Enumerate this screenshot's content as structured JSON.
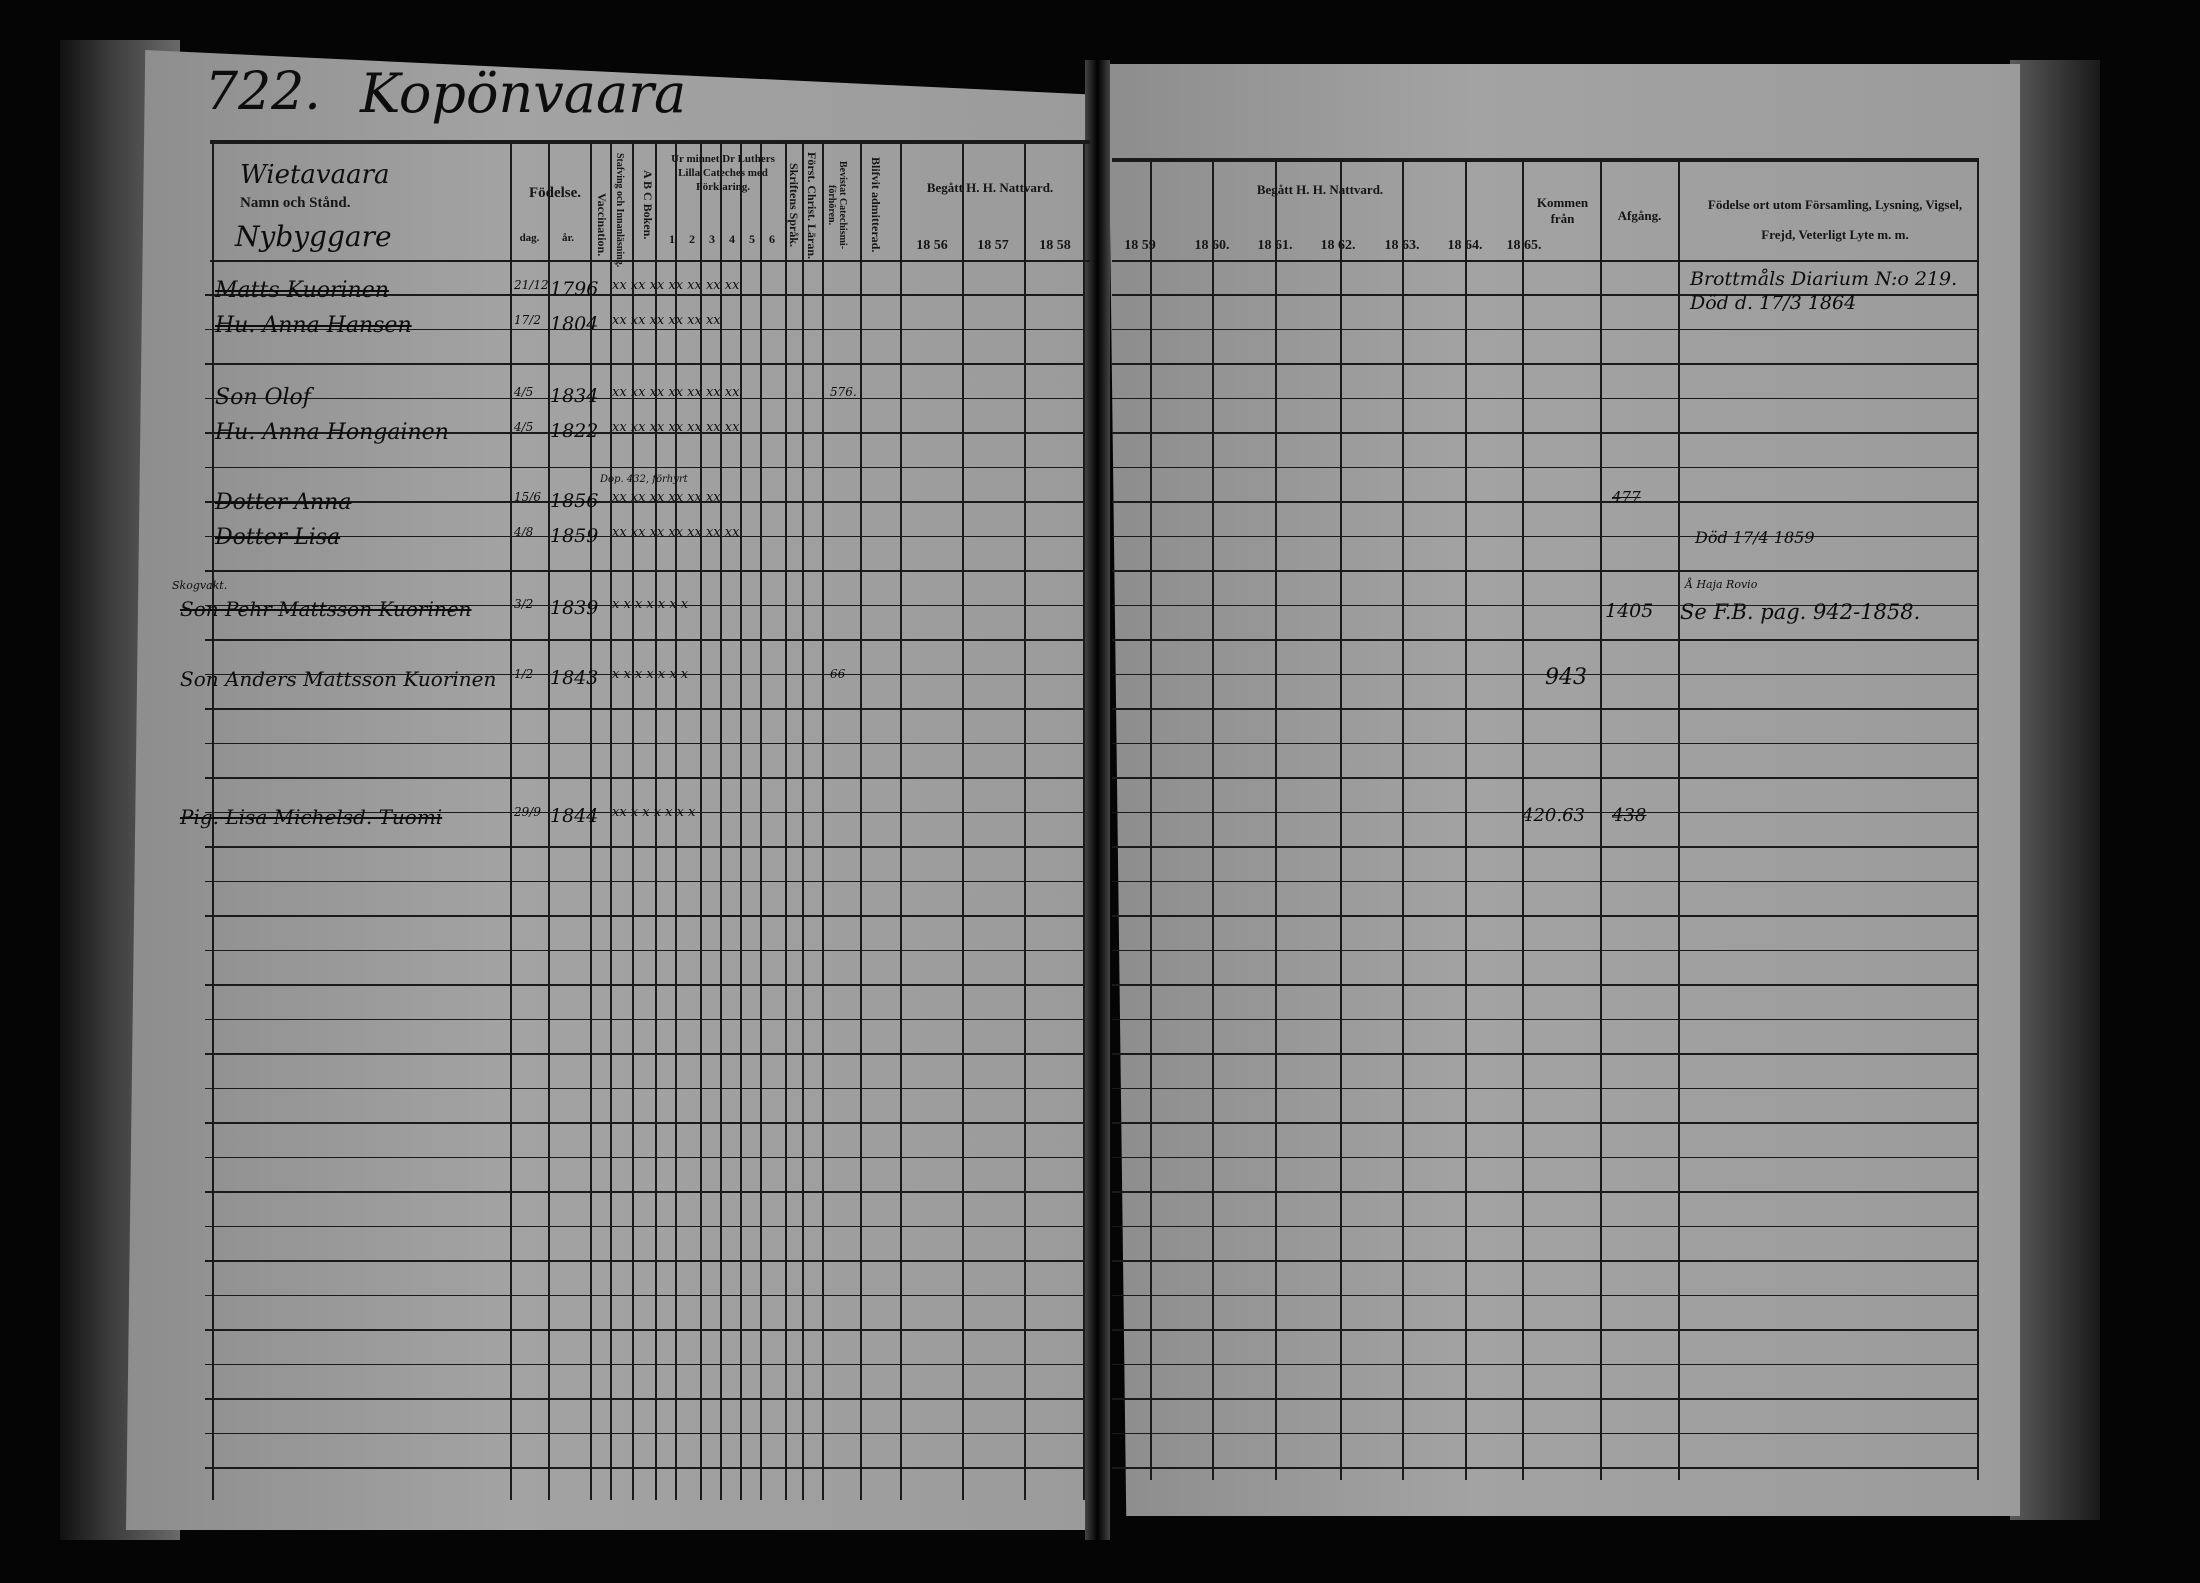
{
  "page_number": "722.",
  "village": "Kopönvaara",
  "header": {
    "subvillage": "Wietavaara",
    "name_col": "Namn och Stånd.",
    "occupation": "Nybyggare",
    "birth": "Födelse.",
    "day": "dag.",
    "year": "år.",
    "vaccination": "Vaccination.",
    "stafving": "Stafving och Innanläsning.",
    "abc": "A B C Boken.",
    "catechism": "Ur minnet Dr Luthers Lilla Cateches med Förklaring.",
    "catechism_parts": [
      "1",
      "2",
      "3",
      "4",
      "5",
      "6"
    ],
    "skriftens": "Skriftens Språk.",
    "forst": "Först. Christ. Läran.",
    "beviset": "Bevistat Catechismi-förhören.",
    "admitterad": "Blifvit admitterad.",
    "nattvard": "Begått H. H. Nattvard.",
    "years_left": [
      "18 56",
      "18 57",
      "18 58"
    ],
    "years_right": [
      "18 59",
      "18 60.",
      "18 61.",
      "18 62.",
      "18 63.",
      "18 64.",
      "18 65."
    ],
    "kommen": "Kommen från",
    "afgang": "Afgång.",
    "notes": "Födelse ort utom Församling, Lysning, Vigsel, Frejd, Veterligt Lyte m. m."
  },
  "rows": [
    {
      "name": "Matts Kuorinen",
      "day": "21/12",
      "year": "1796",
      "marks": "xx xx xx xx xx xx xx",
      "struck": true
    },
    {
      "name": "Hu. Anna Hansen",
      "day": "17/2",
      "year": "1804",
      "marks": "xx xx xx xx xx xx",
      "struck": true
    },
    {
      "name": "Son Olof",
      "day": "4/5",
      "year": "1834",
      "marks": "xx xx xx xx xx xx xx",
      "adm": "576."
    },
    {
      "name": "Hu. Anna Hongainen",
      "day": "4/5",
      "year": "1822",
      "marks": "xx xx xx xx xx xx xx"
    },
    {
      "name": "Dotter Anna",
      "day": "15/6",
      "year": "1856",
      "marks": "xx xx xx xx xx xx",
      "struck": true,
      "note_small": "Dop. 432, förhyrt"
    },
    {
      "name": "Dotter Lisa",
      "day": "4/8",
      "year": "1859",
      "marks": "xx xx xx xx xx xx xx",
      "struck": true
    },
    {
      "name": "Son Pehr Mattsson Kuorinen",
      "day": "3/2",
      "year": "1839",
      "marks": "x x x x x x x",
      "struck": true,
      "prefix": "Skogvakt."
    },
    {
      "name": "Son Anders Mattsson Kuorinen",
      "day": "1/2",
      "year": "1843",
      "marks": "x x x x x x x",
      "adm": "66"
    },
    {
      "name": "Pig. Lisa Michelsd. Tuomi",
      "day": "29/9",
      "year": "1844",
      "marks": "xx x x x x x x",
      "struck": true
    }
  ],
  "right": {
    "note1": "Brottmåls Diarium N:o 219.",
    "note2": "Död d. 17/3 1864",
    "afgang_dotter_anna": "477",
    "note_lisa": "Död 17/4 1859",
    "note_pehr_small": "Å Haja Rovio",
    "afgang_pehr": "1405",
    "note_pehr": "Se F.B. pag. 942-1858.",
    "kommen_anders": "943",
    "kommen_lisa": "420.63",
    "afgang_lisa": "438"
  }
}
